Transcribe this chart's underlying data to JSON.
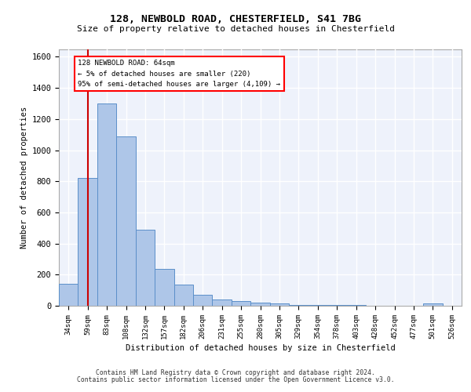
{
  "title_line1": "128, NEWBOLD ROAD, CHESTERFIELD, S41 7BG",
  "title_line2": "Size of property relative to detached houses in Chesterfield",
  "xlabel": "Distribution of detached houses by size in Chesterfield",
  "ylabel": "Number of detached properties",
  "footer_line1": "Contains HM Land Registry data © Crown copyright and database right 2024.",
  "footer_line2": "Contains public sector information licensed under the Open Government Licence v3.0.",
  "bar_labels": [
    "34sqm",
    "59sqm",
    "83sqm",
    "108sqm",
    "132sqm",
    "157sqm",
    "182sqm",
    "206sqm",
    "231sqm",
    "255sqm",
    "280sqm",
    "305sqm",
    "329sqm",
    "354sqm",
    "378sqm",
    "403sqm",
    "428sqm",
    "452sqm",
    "477sqm",
    "501sqm",
    "526sqm"
  ],
  "bar_values": [
    140,
    820,
    1300,
    1090,
    490,
    235,
    135,
    70,
    40,
    30,
    20,
    15,
    5,
    5,
    5,
    3,
    2,
    2,
    2,
    15,
    2
  ],
  "bar_color": "#aec6e8",
  "bar_edge_color": "#5b8fc9",
  "ylim": [
    0,
    1650
  ],
  "yticks": [
    0,
    200,
    400,
    600,
    800,
    1000,
    1200,
    1400,
    1600
  ],
  "red_line_color": "#cc0000",
  "annotation_text_line1": "128 NEWBOLD ROAD: 64sqm",
  "annotation_text_line2": "← 5% of detached houses are smaller (220)",
  "annotation_text_line3": "95% of semi-detached houses are larger (4,109) →",
  "background_color": "#eef2fb",
  "grid_color": "#ffffff"
}
